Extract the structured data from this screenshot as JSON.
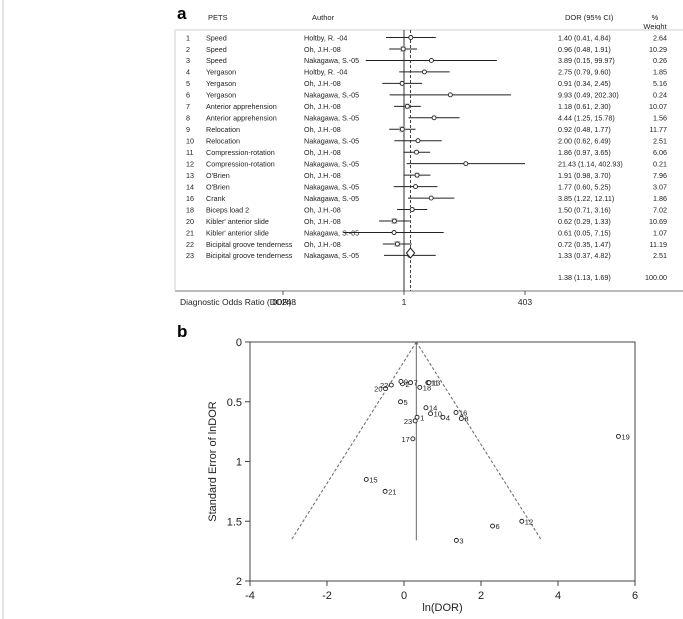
{
  "panel_labels": [
    "a",
    "b"
  ],
  "chart_data": [
    {
      "type": "forest",
      "headers": {
        "num": "",
        "test": "PETS",
        "author": "Author",
        "ci": "DOR (95% CI)",
        "weight": "% Weight"
      },
      "axis": {
        "scale": "log",
        "xlabel": "Diagnostic Odds Ratio (DOR) :",
        "ticks": [
          ".00248",
          "1",
          "403"
        ],
        "ref_line": 1
      },
      "rows": [
        {
          "num": "1",
          "test": "Speed",
          "author": "Holtby, R. -04",
          "dor": 1.4,
          "lo": 0.41,
          "hi": 4.84,
          "ci": "1.40 (0.41, 4.84)",
          "weight": "2.64"
        },
        {
          "num": "2",
          "test": "Speed",
          "author": "Oh, J.H.-08",
          "dor": 0.96,
          "lo": 0.48,
          "hi": 1.91,
          "ci": "0.96 (0.48, 1.91)",
          "weight": "10.29"
        },
        {
          "num": "3",
          "test": "Speed",
          "author": "Nakagawa, S.-05",
          "dor": 3.89,
          "lo": 0.15,
          "hi": 99.97,
          "ci": "3.89 (0.15, 99.97)",
          "weight": "0.26"
        },
        {
          "num": "4",
          "test": "Yergason",
          "author": "Holtby, R. -04",
          "dor": 2.75,
          "lo": 0.79,
          "hi": 9.6,
          "ci": "2.75 (0.79, 9.60)",
          "weight": "1.85"
        },
        {
          "num": "5",
          "test": "Yergason",
          "author": "Oh, J.H.-08",
          "dor": 0.91,
          "lo": 0.34,
          "hi": 2.45,
          "ci": "0.91 (0.34, 2.45)",
          "weight": "5.16"
        },
        {
          "num": "6",
          "test": "Yergason",
          "author": "Nakagawa, S.-05",
          "dor": 9.93,
          "lo": 0.49,
          "hi": 202.3,
          "ci": "9.93 (0.49, 202.30)",
          "weight": "0.24"
        },
        {
          "num": "7",
          "test": "Anterior apprehension",
          "author": "Oh, J.H.-08",
          "dor": 1.18,
          "lo": 0.61,
          "hi": 2.3,
          "ci": "1.18 (0.61, 2.30)",
          "weight": "10.07"
        },
        {
          "num": "8",
          "test": "Anterior apprehension",
          "author": "Nakagawa, S.-05",
          "dor": 4.44,
          "lo": 1.25,
          "hi": 15.78,
          "ci": "4.44 (1.25, 15.78)",
          "weight": "1.56"
        },
        {
          "num": "9",
          "test": "Relocation",
          "author": "Oh, J.H.-08",
          "dor": 0.92,
          "lo": 0.48,
          "hi": 1.77,
          "ci": "0.92 (0.48, 1.77)",
          "weight": "11.77"
        },
        {
          "num": "10",
          "test": "Relocation",
          "author": "Nakagawa, S.-05",
          "dor": 2.0,
          "lo": 0.62,
          "hi": 6.49,
          "ci": "2.00 (0.62, 6.49)",
          "weight": "2.51"
        },
        {
          "num": "11",
          "test": "Compression-rotation",
          "author": "Oh, J.H.-08",
          "dor": 1.86,
          "lo": 0.97,
          "hi": 3.65,
          "ci": "1.86 (0.97, 3.65)",
          "weight": "6.06"
        },
        {
          "num": "12",
          "test": "Compression-rotation",
          "author": "Nakagawa, S.-05",
          "dor": 21.43,
          "lo": 1.14,
          "hi": 402.93,
          "ci": "21.43 (1.14, 402.93)",
          "weight": "0.21"
        },
        {
          "num": "13",
          "test": "O'Brien",
          "author": "Oh, J.H.-08",
          "dor": 1.91,
          "lo": 0.98,
          "hi": 3.7,
          "ci": "1.91 (0.98, 3.70)",
          "weight": "7.96"
        },
        {
          "num": "14",
          "test": "O'Brien",
          "author": "Nakagawa, S.-05",
          "dor": 1.77,
          "lo": 0.6,
          "hi": 5.25,
          "ci": "1.77 (0.60, 5.25)",
          "weight": "3.07"
        },
        {
          "num": "16",
          "test": "Crank",
          "author": "Nakagawa, S.-05",
          "dor": 3.85,
          "lo": 1.22,
          "hi": 12.11,
          "ci": "3.85 (1.22, 12.11)",
          "weight": "1.86"
        },
        {
          "num": "18",
          "test": "Biceps load 2",
          "author": "Oh, J.H.-08",
          "dor": 1.5,
          "lo": 0.71,
          "hi": 3.16,
          "ci": "1.50 (0.71, 3.16)",
          "weight": "7.02"
        },
        {
          "num": "20",
          "test": "Kibler' anterior slide",
          "author": "Oh, J.H.-08",
          "dor": 0.62,
          "lo": 0.29,
          "hi": 1.33,
          "ci": "0.62 (0.29, 1.33)",
          "weight": "10.69"
        },
        {
          "num": "21",
          "test": "Kibler' anterior slide",
          "author": "Nakagawa, S.-05",
          "dor": 0.61,
          "lo": 0.05,
          "hi": 7.15,
          "ci": "0.61 (0.05, 7.15)",
          "weight": "1.07"
        },
        {
          "num": "22",
          "test": "Bicipital groove tenderness",
          "author": "Oh, J.H.-08",
          "dor": 0.72,
          "lo": 0.35,
          "hi": 1.47,
          "ci": "0.72 (0.35, 1.47)",
          "weight": "11.19"
        },
        {
          "num": "23",
          "test": "Bicipital groove tenderness",
          "author": "Nakagawa, S.-05",
          "dor": 1.33,
          "lo": 0.37,
          "hi": 4.82,
          "ci": "1.33 (0.37, 4.82)",
          "weight": "2.51"
        }
      ],
      "pooled": {
        "dor": 1.38,
        "lo": 1.13,
        "hi": 1.69,
        "ci": "1.38 (1.13, 1.69)",
        "weight": "100.00"
      }
    },
    {
      "type": "scatter",
      "subtype": "funnel",
      "xlabel": "ln(DOR)",
      "ylabel": "Standard Error of lnDOR",
      "xlim": [
        -4,
        6
      ],
      "ylim": [
        0,
        2
      ],
      "y_inverted": true,
      "xticks": [
        "-4",
        "-2",
        "0",
        "2",
        "4",
        "6"
      ],
      "yticks": [
        "0",
        "0.5",
        "1",
        "1.5",
        "2"
      ],
      "pooled_lnDOR": 0.32,
      "points": [
        {
          "label": "1",
          "x": 0.34,
          "y": 0.63
        },
        {
          "label": "2",
          "x": -0.04,
          "y": 0.35
        },
        {
          "label": "3",
          "x": 1.36,
          "y": 1.66
        },
        {
          "label": "4",
          "x": 1.01,
          "y": 0.63
        },
        {
          "label": "5",
          "x": -0.09,
          "y": 0.5
        },
        {
          "label": "6",
          "x": 2.3,
          "y": 1.54
        },
        {
          "label": "7",
          "x": 0.17,
          "y": 0.34
        },
        {
          "label": "8",
          "x": 1.49,
          "y": 0.64
        },
        {
          "label": "9",
          "x": -0.08,
          "y": 0.33
        },
        {
          "label": "10",
          "x": 0.69,
          "y": 0.6
        },
        {
          "label": "11",
          "x": 0.62,
          "y": 0.34
        },
        {
          "label": "12",
          "x": 3.06,
          "y": 1.5
        },
        {
          "label": "13",
          "x": 0.65,
          "y": 0.34
        },
        {
          "label": "14",
          "x": 0.57,
          "y": 0.55
        },
        {
          "label": "16",
          "x": 1.35,
          "y": 0.59
        },
        {
          "label": "17",
          "x": 0.23,
          "y": 0.81
        },
        {
          "label": "18",
          "x": 0.41,
          "y": 0.38
        },
        {
          "label": "19",
          "x": 5.57,
          "y": 0.79
        },
        {
          "label": "20",
          "x": -0.48,
          "y": 0.39
        },
        {
          "label": "21",
          "x": -0.49,
          "y": 1.25
        },
        {
          "label": "22",
          "x": -0.33,
          "y": 0.36
        },
        {
          "label": "23",
          "x": 0.29,
          "y": 0.66
        },
        {
          "label": "15",
          "x": -0.98,
          "y": 1.15
        }
      ]
    }
  ]
}
